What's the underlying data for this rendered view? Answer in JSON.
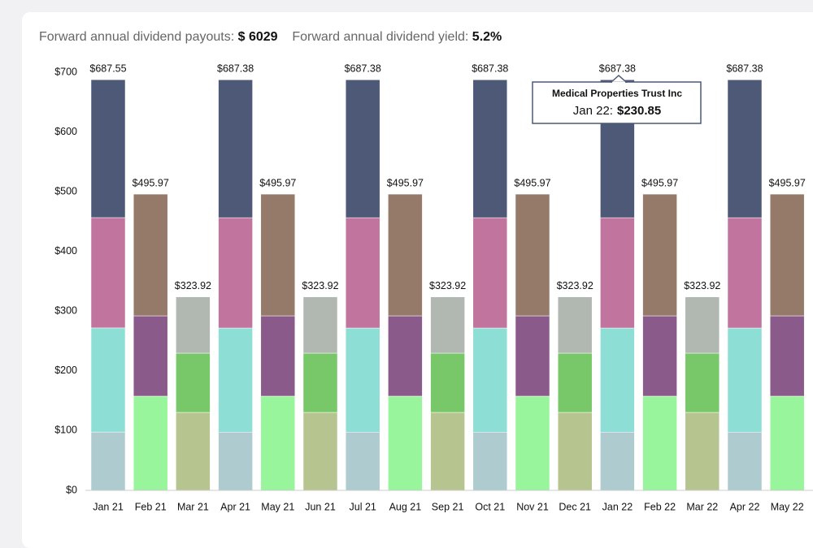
{
  "header": {
    "payouts_label": "Forward annual dividend payouts:",
    "payouts_value": "$ 6029",
    "yield_label": "Forward annual dividend yield:",
    "yield_value": "5.2%"
  },
  "chart_data": {
    "type": "stacked_bar",
    "categories": [
      "Jan 21",
      "Feb 21",
      "Mar 21",
      "Apr 21",
      "May 21",
      "Jun 21",
      "Jul 21",
      "Aug 21",
      "Sep 21",
      "Oct 21",
      "Nov 21",
      "Dec 21",
      "Jan 22",
      "Feb 22",
      "Mar 22",
      "Apr 22",
      "May 22"
    ],
    "ylim": [
      0,
      700
    ],
    "yticks": [
      {
        "value": 0,
        "label": "$0"
      },
      {
        "value": 100,
        "label": "$100"
      },
      {
        "value": 200,
        "label": "$200"
      },
      {
        "value": 300,
        "label": "$300"
      },
      {
        "value": 400,
        "label": "$400"
      },
      {
        "value": 500,
        "label": "$500"
      },
      {
        "value": 600,
        "label": "$600"
      },
      {
        "value": 700,
        "label": "$700"
      }
    ],
    "series": [
      {
        "color": "#aecbd0",
        "values": [
          97.67,
          null,
          null,
          97.5,
          null,
          null,
          97.5,
          null,
          null,
          97.5,
          null,
          null,
          97.5,
          null,
          null,
          97.5,
          null
        ]
      },
      {
        "color": "#8ddfd6",
        "values": [
          174.3,
          null,
          null,
          174.3,
          null,
          null,
          174.3,
          null,
          null,
          174.3,
          null,
          null,
          174.3,
          null,
          null,
          174.3,
          null
        ]
      },
      {
        "color": "#c0749e",
        "values": [
          184.73,
          null,
          null,
          184.73,
          null,
          null,
          184.73,
          null,
          null,
          184.73,
          null,
          null,
          184.73,
          null,
          null,
          184.73,
          null
        ]
      },
      {
        "name": "Medical Properties Trust Inc",
        "color": "#4d5977",
        "values": [
          230.85,
          null,
          null,
          230.85,
          null,
          null,
          230.85,
          null,
          null,
          230.85,
          null,
          null,
          230.85,
          null,
          null,
          230.85,
          null
        ]
      },
      {
        "color": "#98f59b",
        "values": [
          null,
          157.7,
          null,
          null,
          157.7,
          null,
          null,
          157.7,
          null,
          null,
          157.7,
          null,
          null,
          157.7,
          null,
          null,
          157.7
        ]
      },
      {
        "color": "#8a5a8a",
        "values": [
          null,
          134.5,
          null,
          null,
          134.5,
          null,
          null,
          134.5,
          null,
          null,
          134.5,
          null,
          null,
          134.5,
          null,
          null,
          134.5
        ]
      },
      {
        "color": "#957a69",
        "values": [
          null,
          203.77,
          null,
          null,
          203.77,
          null,
          null,
          203.77,
          null,
          null,
          203.77,
          null,
          null,
          203.77,
          null,
          null,
          203.77
        ]
      },
      {
        "color": "#b6c490",
        "values": [
          null,
          null,
          130.5,
          null,
          null,
          130.5,
          null,
          null,
          130.5,
          null,
          null,
          130.5,
          null,
          null,
          130.5,
          null,
          null
        ]
      },
      {
        "color": "#78c768",
        "values": [
          null,
          null,
          99.2,
          null,
          null,
          99.2,
          null,
          null,
          99.2,
          null,
          null,
          99.2,
          null,
          null,
          99.2,
          null,
          null
        ]
      },
      {
        "color": "#b0b8b1",
        "values": [
          null,
          null,
          94.22,
          null,
          null,
          94.22,
          null,
          null,
          94.22,
          null,
          null,
          94.22,
          null,
          null,
          94.22,
          null,
          null
        ]
      }
    ],
    "totals": {
      "values": [
        687.55,
        495.97,
        323.92,
        687.38,
        495.97,
        323.92,
        687.38,
        495.97,
        323.92,
        687.38,
        495.97,
        323.92,
        687.38,
        495.97,
        323.92,
        687.38,
        495.97
      ],
      "value_labels": [
        "$687.55",
        "$495.97",
        "$323.92",
        "$687.38",
        "$495.97",
        "$323.92",
        "$687.38",
        "$495.97",
        "$323.92",
        "$687.38",
        "$495.97",
        "$323.92",
        "$687.38",
        "$495.97",
        "$323.92",
        "$687.38",
        "$495.97"
      ]
    },
    "tooltip": {
      "title": "Medical Properties Trust Inc",
      "label": "Jan 22:",
      "value": "$230.85"
    }
  }
}
